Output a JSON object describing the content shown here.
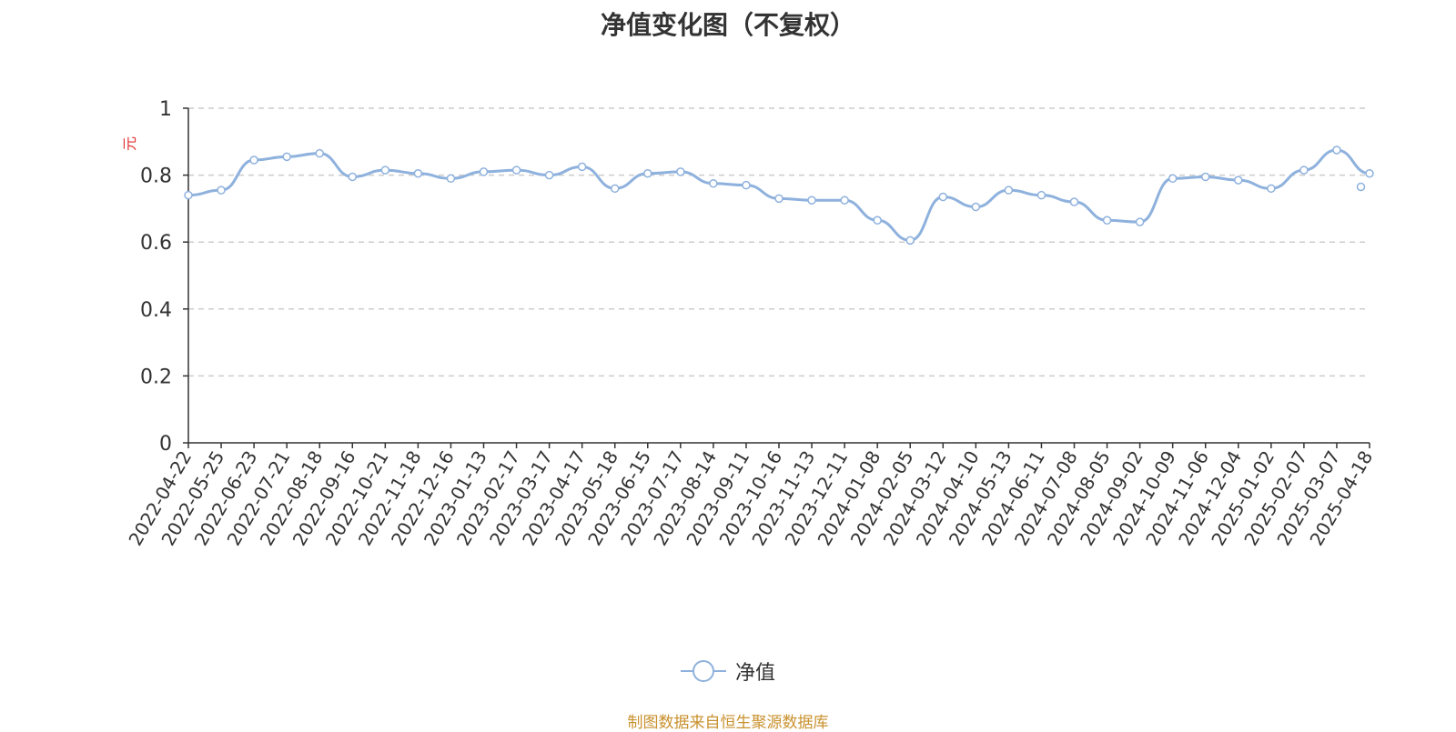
{
  "chart_data": {
    "type": "line",
    "title": "净值变化图（不复权）",
    "ylabel": "元",
    "ylim": [
      0,
      1
    ],
    "yticks": [
      "0",
      "0.2",
      "0.4",
      "0.6",
      "0.8",
      "1"
    ],
    "grid": true,
    "legend_position": "bottom-center",
    "categories": [
      "2022-04-22",
      "2022-05-25",
      "2022-06-23",
      "2022-07-21",
      "2022-08-18",
      "2022-09-16",
      "2022-10-21",
      "2022-11-18",
      "2022-12-16",
      "2023-01-13",
      "2023-02-17",
      "2023-03-17",
      "2023-04-17",
      "2023-05-18",
      "2023-06-15",
      "2023-07-17",
      "2023-08-14",
      "2023-09-11",
      "2023-10-16",
      "2023-11-13",
      "2023-12-11",
      "2024-01-08",
      "2024-02-05",
      "2024-03-12",
      "2024-04-10",
      "2024-05-13",
      "2024-06-11",
      "2024-07-08",
      "2024-08-05",
      "2024-09-02",
      "2024-10-09",
      "2024-11-06",
      "2024-12-04",
      "2025-01-02",
      "2025-02-07",
      "2025-03-07",
      "2025-04-18"
    ],
    "series": [
      {
        "name": "净值",
        "color": "#8eb1dd",
        "values": [
          0.74,
          0.755,
          0.845,
          0.855,
          0.865,
          0.795,
          0.815,
          0.805,
          0.79,
          0.81,
          0.815,
          0.8,
          0.825,
          0.76,
          0.805,
          0.81,
          0.775,
          0.77,
          0.73,
          0.725,
          0.725,
          0.665,
          0.605,
          0.735,
          0.705,
          0.755,
          0.74,
          0.72,
          0.665,
          0.66,
          0.79,
          0.795,
          0.785,
          0.76,
          0.815,
          0.875,
          0.805
        ]
      }
    ],
    "extra_markers": [
      {
        "x": "2025-04-18",
        "x_offset_days": -8,
        "value": 0.765
      }
    ]
  },
  "source_note": "制图数据来自恒生聚源数据库"
}
